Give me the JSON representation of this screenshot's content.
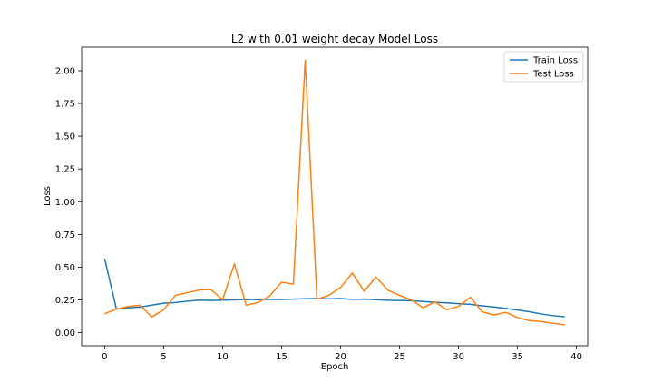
{
  "chart_data": {
    "type": "line",
    "title": "L2 with 0.01 weight decay Model Loss",
    "xlabel": "Epoch",
    "ylabel": "Loss",
    "xlim": [
      -1.95,
      40.95
    ],
    "ylim": [
      -0.1,
      2.18
    ],
    "xticks": [
      0,
      5,
      10,
      15,
      20,
      25,
      30,
      35,
      40
    ],
    "yticks": [
      0.0,
      0.25,
      0.5,
      0.75,
      1.0,
      1.25,
      1.5,
      1.75,
      2.0
    ],
    "ytick_labels": [
      "0.00",
      "0.25",
      "0.50",
      "0.75",
      "1.00",
      "1.25",
      "1.50",
      "1.75",
      "2.00"
    ],
    "grid": false,
    "legend": "top-right",
    "series": [
      {
        "name": "Train Loss",
        "color": "#1f77b4",
        "x": [
          0,
          1,
          2,
          3,
          4,
          5,
          6,
          7,
          8,
          9,
          10,
          11,
          12,
          13,
          14,
          15,
          16,
          17,
          18,
          19,
          20,
          21,
          22,
          23,
          24,
          25,
          26,
          27,
          28,
          29,
          30,
          31,
          32,
          33,
          34,
          35,
          36,
          37,
          38,
          39
        ],
        "y": [
          0.565,
          0.18,
          0.19,
          0.195,
          0.21,
          0.225,
          0.23,
          0.24,
          0.248,
          0.246,
          0.248,
          0.251,
          0.253,
          0.252,
          0.254,
          0.253,
          0.256,
          0.259,
          0.26,
          0.258,
          0.26,
          0.254,
          0.256,
          0.252,
          0.247,
          0.246,
          0.244,
          0.238,
          0.232,
          0.227,
          0.221,
          0.216,
          0.205,
          0.196,
          0.185,
          0.173,
          0.16,
          0.143,
          0.13,
          0.122
        ]
      },
      {
        "name": "Test Loss",
        "color": "#ff7f0e",
        "x": [
          0,
          1,
          2,
          3,
          4,
          5,
          6,
          7,
          8,
          9,
          10,
          11,
          12,
          13,
          14,
          15,
          16,
          17,
          18,
          19,
          20,
          21,
          22,
          23,
          24,
          25,
          26,
          27,
          28,
          29,
          30,
          31,
          32,
          33,
          34,
          35,
          36,
          37,
          38,
          39
        ],
        "y": [
          0.145,
          0.18,
          0.2,
          0.21,
          0.12,
          0.175,
          0.285,
          0.305,
          0.325,
          0.33,
          0.25,
          0.525,
          0.21,
          0.23,
          0.28,
          0.385,
          0.37,
          2.08,
          0.255,
          0.285,
          0.345,
          0.455,
          0.315,
          0.425,
          0.325,
          0.285,
          0.25,
          0.19,
          0.235,
          0.175,
          0.2,
          0.27,
          0.16,
          0.135,
          0.155,
          0.115,
          0.092,
          0.085,
          0.072,
          0.06
        ]
      }
    ]
  }
}
